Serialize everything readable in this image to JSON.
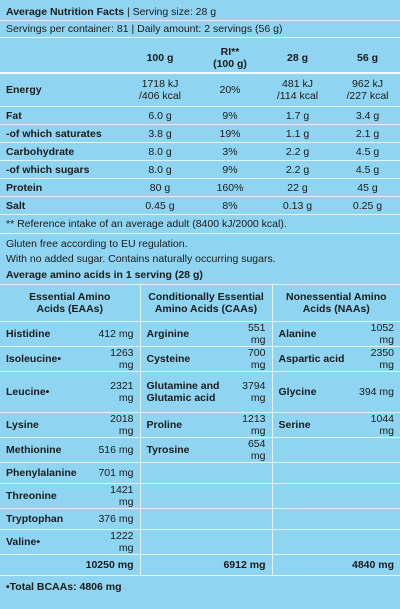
{
  "header": {
    "title": "Average Nutrition Facts",
    "serving": "| Serving size: 28 g",
    "servings_line": "Servings per container: 81 | Daily amount: 2 servings (56 g)"
  },
  "nutrition": {
    "columns": [
      [
        "100 g"
      ],
      [
        "RI**",
        "(100 g)"
      ],
      [
        "28 g"
      ],
      [
        "56 g"
      ]
    ],
    "rows": [
      {
        "label": "Energy",
        "cells": [
          [
            "1718 kJ",
            "/406 kcal"
          ],
          [
            "20%"
          ],
          [
            "481 kJ",
            "/114 kcal"
          ],
          [
            "962 kJ",
            "/227 kcal"
          ]
        ]
      },
      {
        "label": "Fat",
        "cells": [
          [
            "6.0 g"
          ],
          [
            "9%"
          ],
          [
            "1.7 g"
          ],
          [
            "3.4 g"
          ]
        ]
      },
      {
        "label": "-of which saturates",
        "cells": [
          [
            "3.8 g"
          ],
          [
            "19%"
          ],
          [
            "1.1 g"
          ],
          [
            "2.1 g"
          ]
        ]
      },
      {
        "label": "Carbohydrate",
        "cells": [
          [
            "8.0 g"
          ],
          [
            "3%"
          ],
          [
            "2.2 g"
          ],
          [
            "4.5 g"
          ]
        ]
      },
      {
        "label": "-of which sugars",
        "cells": [
          [
            "8.0 g"
          ],
          [
            "9%"
          ],
          [
            "2.2 g"
          ],
          [
            "4.5 g"
          ]
        ]
      },
      {
        "label": "Protein",
        "cells": [
          [
            "80 g"
          ],
          [
            "160%"
          ],
          [
            "22 g"
          ],
          [
            "45 g"
          ]
        ]
      },
      {
        "label": "Salt",
        "cells": [
          [
            "0.45 g"
          ],
          [
            "8%"
          ],
          [
            "0.13 g"
          ],
          [
            "0.25 g"
          ]
        ]
      }
    ],
    "footnote": "** Reference intake of an average adult (8400 kJ/2000 kcal)."
  },
  "notes": [
    "Gluten free according to EU regulation.",
    "With no added sugar. Contains naturally occurring sugars."
  ],
  "amino": {
    "title": "Average amino acids in 1 serving (28 g)",
    "groups": [
      [
        "Essential Amino",
        "Acids (EAAs)"
      ],
      [
        "Conditionally Essential",
        "Amino Acids (CAAs)"
      ],
      [
        "Nonessential Amino",
        "Acids (NAAs)"
      ]
    ],
    "rows": [
      [
        [
          "Histidine",
          "412 mg"
        ],
        [
          "Arginine",
          "551 mg"
        ],
        [
          "Alanine",
          "1052 mg"
        ]
      ],
      [
        [
          "Isoleucine•",
          "1263 mg"
        ],
        [
          "Cysteine",
          "700 mg"
        ],
        [
          "Aspartic acid",
          "2350 mg"
        ]
      ],
      [
        [
          "Leucine•",
          "2321 mg"
        ],
        [
          "Glutamine and Glutamic acid",
          "3794 mg"
        ],
        [
          "Glycine",
          "394 mg"
        ]
      ],
      [
        [
          "Lysine",
          "2018 mg"
        ],
        [
          "Proline",
          "1213 mg"
        ],
        [
          "Serine",
          "1044 mg"
        ]
      ],
      [
        [
          "Methionine",
          "516 mg"
        ],
        [
          "Tyrosine",
          "654 mg"
        ],
        null
      ],
      [
        [
          "Phenylalanine",
          "701 mg"
        ],
        null,
        null
      ],
      [
        [
          "Threonine",
          "1421 mg"
        ],
        null,
        null
      ],
      [
        [
          "Tryptophan",
          "376 mg"
        ],
        null,
        null
      ],
      [
        [
          "Valine•",
          "1222 mg"
        ],
        null,
        null
      ]
    ],
    "totals": [
      "10250 mg",
      "6912 mg",
      "4840 mg"
    ],
    "footer": "•Total BCAAs: 4806 mg"
  }
}
